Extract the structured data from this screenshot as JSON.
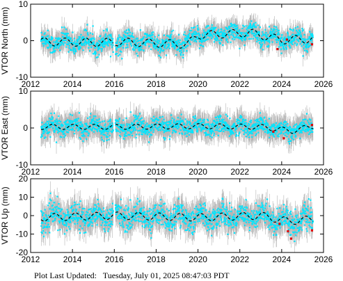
{
  "footer": {
    "label": "Plot Last Updated:",
    "timestamp": "Tuesday, July 01, 2025 08:47:03 PDT"
  },
  "colors": {
    "error_bars": "#b4b4b4",
    "points": "#00e5ff",
    "model": "#000000",
    "outliers": "#e00000",
    "frame": "#000000"
  },
  "chart_data": [
    {
      "type": "scatter",
      "ylabel": "VTOR North (mm)",
      "xlim": [
        2012,
        2026
      ],
      "ylim": [
        -10,
        10
      ],
      "xticks": [
        2012,
        2014,
        2016,
        2018,
        2020,
        2022,
        2024,
        2026
      ],
      "yticks": [
        -10,
        0,
        10
      ],
      "data_start": 2012.5,
      "data_end": 2025.5,
      "gaps": [
        [
          2015.95,
          2016.05
        ]
      ],
      "trend": [
        [
          2012.5,
          -0.3
        ],
        [
          2015.5,
          -0.5
        ],
        [
          2016.1,
          -0.3
        ],
        [
          2019.5,
          -1.0
        ],
        [
          2020.0,
          1.5
        ],
        [
          2022.5,
          2.2
        ],
        [
          2024.0,
          0.2
        ],
        [
          2025.5,
          0.5
        ]
      ],
      "seasonal_amplitude": 1.0,
      "scatter_spread": 1.3,
      "error_bar": 2.2,
      "model": {
        "amplitude": 1.1,
        "phase": 0.6
      },
      "outliers": [
        [
          2023.8,
          -2.3
        ],
        [
          2024.25,
          0.3
        ],
        [
          2025.45,
          -1.0
        ]
      ]
    },
    {
      "type": "scatter",
      "ylabel": "VTOR East (mm)",
      "xlim": [
        2012,
        2026
      ],
      "ylim": [
        -10,
        10
      ],
      "xticks": [
        2012,
        2014,
        2016,
        2018,
        2020,
        2022,
        2024,
        2026
      ],
      "yticks": [
        -10,
        0,
        10
      ],
      "data_start": 2012.5,
      "data_end": 2025.5,
      "gaps": [
        [
          2015.95,
          2016.05
        ]
      ],
      "trend": [
        [
          2012.5,
          0.3
        ],
        [
          2016.0,
          0.3
        ],
        [
          2020.0,
          0.5
        ],
        [
          2023.0,
          0.3
        ],
        [
          2024.5,
          -0.8
        ],
        [
          2025.5,
          0.5
        ]
      ],
      "seasonal_amplitude": 0.8,
      "scatter_spread": 1.2,
      "error_bar": 2.5,
      "model": {
        "amplitude": 0.7,
        "phase": 0.2
      },
      "outliers": [
        [
          2023.6,
          -1.0
        ],
        [
          2024.1,
          -2.8
        ],
        [
          2025.45,
          0.8
        ]
      ]
    },
    {
      "type": "scatter",
      "ylabel": "VTOR Up (mm)",
      "xlim": [
        2012,
        2026
      ],
      "ylim": [
        -20,
        20
      ],
      "xticks": [
        2012,
        2014,
        2016,
        2018,
        2020,
        2022,
        2024,
        2026
      ],
      "yticks": [
        -20,
        -10,
        0,
        10,
        20
      ],
      "data_start": 2012.5,
      "data_end": 2025.5,
      "gaps": [
        [
          2015.95,
          2016.05
        ]
      ],
      "trend": [
        [
          2012.5,
          -1.0
        ],
        [
          2016.0,
          0.0
        ],
        [
          2020.0,
          -1.0
        ],
        [
          2023.0,
          0.0
        ],
        [
          2024.3,
          -3.0
        ],
        [
          2025.5,
          -2.0
        ]
      ],
      "seasonal_amplitude": 2.5,
      "scatter_spread": 3.2,
      "error_bar": 5.5,
      "model": {
        "amplitude": 2.0,
        "phase": 0.1
      },
      "outliers": [
        [
          2023.9,
          -4.5
        ],
        [
          2024.3,
          -8.5
        ],
        [
          2024.45,
          -12.5
        ],
        [
          2025.45,
          -8.0
        ]
      ]
    }
  ]
}
